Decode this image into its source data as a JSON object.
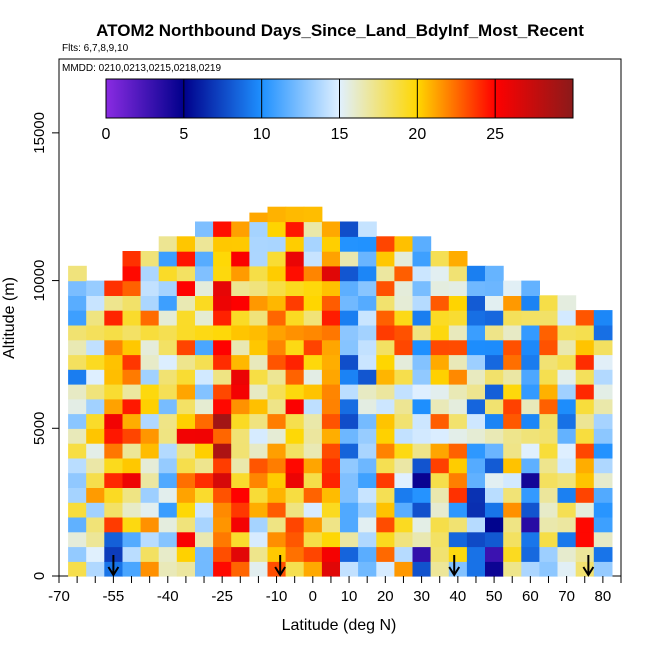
{
  "chart_data": {
    "type": "heatmap",
    "title": "ATOM2 Northbound Days_Since_Land_BdyInf_Most_Recent",
    "subtitle_flights": "Flts: 6,7,8,9,10",
    "subtitle_dates": "MMDD: 0210,0213,0215,0218,0219",
    "xlabel": "Latitude (deg N)",
    "ylabel": "Altitude (m)",
    "xlim": [
      -70,
      85
    ],
    "ylim": [
      0,
      17500
    ],
    "x_ticks": [
      -70,
      -55,
      -40,
      -25,
      -10,
      0,
      10,
      20,
      30,
      40,
      50,
      60,
      70,
      80
    ],
    "x_tick_labels": [
      "-70",
      "-55",
      "-40",
      "-25",
      "-10",
      "0",
      "10",
      "20",
      "30",
      "40",
      "50",
      "60",
      "70",
      "80"
    ],
    "y_ticks": [
      0,
      5000,
      10000,
      15000
    ],
    "y_tick_labels": [
      "0",
      "5000",
      "10000",
      "15000"
    ],
    "colorbar": {
      "min": 0,
      "max": 30,
      "ticks": [
        0,
        5,
        10,
        15,
        20,
        25
      ],
      "tick_labels": [
        "0",
        "5",
        "10",
        "15",
        "20",
        "25"
      ],
      "colors": [
        "#8a2be2",
        "#00008b",
        "#1e90ff",
        "#e0f0ff",
        "#ffd700",
        "#ff0000",
        "#8b1a1a"
      ]
    },
    "profile_markers_lat": [
      -55,
      -9,
      39,
      76
    ],
    "columns": [
      {
        "lat": -65,
        "top": 10500,
        "seed": 3
      },
      {
        "lat": -60,
        "top": 10000,
        "seed": 7
      },
      {
        "lat": -55,
        "top": 10000,
        "seed": 11
      },
      {
        "lat": -50,
        "top": 11000,
        "seed": 5
      },
      {
        "lat": -45,
        "top": 11000,
        "seed": 13
      },
      {
        "lat": -40,
        "top": 11500,
        "seed": 9
      },
      {
        "lat": -35,
        "top": 11500,
        "seed": 17
      },
      {
        "lat": -30,
        "top": 12000,
        "seed": 21
      },
      {
        "lat": -25,
        "top": 12000,
        "seed": 23
      },
      {
        "lat": -20,
        "top": 12000,
        "seed": 29
      },
      {
        "lat": -15,
        "top": 12300,
        "seed": 31
      },
      {
        "lat": -10,
        "top": 12500,
        "seed": 37
      },
      {
        "lat": -5,
        "top": 12500,
        "seed": 41
      },
      {
        "lat": 0,
        "top": 12500,
        "seed": 43
      },
      {
        "lat": 5,
        "top": 12000,
        "seed": 47
      },
      {
        "lat": 10,
        "top": 12000,
        "seed": 53
      },
      {
        "lat": 15,
        "top": 12000,
        "seed": 59
      },
      {
        "lat": 20,
        "top": 11500,
        "seed": 61
      },
      {
        "lat": 25,
        "top": 11500,
        "seed": 67
      },
      {
        "lat": 30,
        "top": 11500,
        "seed": 71
      },
      {
        "lat": 35,
        "top": 11000,
        "seed": 73
      },
      {
        "lat": 40,
        "top": 11000,
        "seed": 79
      },
      {
        "lat": 45,
        "top": 10500,
        "seed": 83
      },
      {
        "lat": 50,
        "top": 10500,
        "seed": 89
      },
      {
        "lat": 55,
        "top": 10000,
        "seed": 97
      },
      {
        "lat": 60,
        "top": 10000,
        "seed": 101
      },
      {
        "lat": 65,
        "top": 9500,
        "seed": 103
      },
      {
        "lat": 70,
        "top": 9500,
        "seed": 107
      },
      {
        "lat": 75,
        "top": 9000,
        "seed": 109
      },
      {
        "lat": 80,
        "top": 9000,
        "seed": 113
      }
    ]
  }
}
